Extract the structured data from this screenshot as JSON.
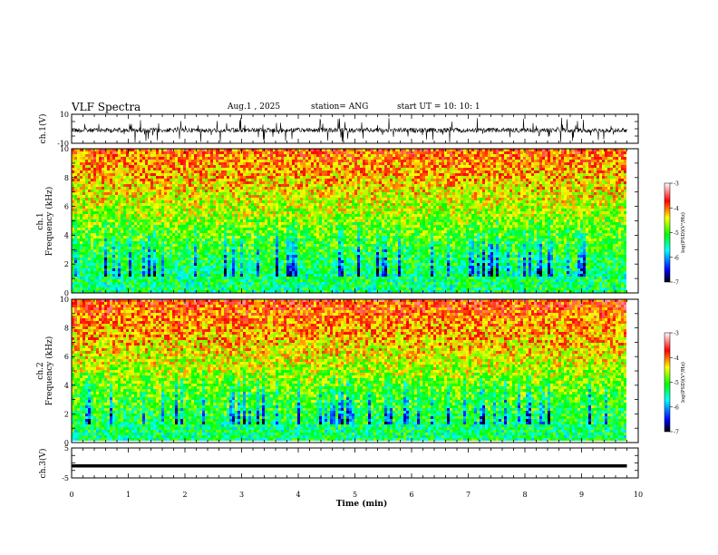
{
  "header": {
    "title": "VLF Spectra",
    "date": "Aug.1 , 2025",
    "station": "station= ANG",
    "start": "start UT = 10: 10: 1"
  },
  "chart_data": [
    {
      "type": "line",
      "panel": "ch1-waveform",
      "ylabel": "ch.1(V)",
      "ylim": [
        -10,
        10
      ],
      "yticks": [
        "10",
        "-10"
      ],
      "xlim": [
        0,
        10
      ],
      "color": "#000000"
    },
    {
      "type": "heatmap",
      "panel": "ch1-spectrogram",
      "ylabel": "ch.1\nFrequency (kHz)",
      "ylim": [
        0,
        10
      ],
      "yticks": [
        "0",
        "2",
        "4",
        "6",
        "8",
        "10"
      ],
      "xlim": [
        0,
        10
      ],
      "data_extent_min": 9.8,
      "colorbar": {
        "label": "log(PSD)(V²/Hz)",
        "range": [
          -7,
          -3
        ],
        "ticks": [
          "-3",
          "-4",
          "-5",
          "-6",
          "-7"
        ]
      }
    },
    {
      "type": "heatmap",
      "panel": "ch2-spectrogram",
      "ylabel": "ch.2\nFrequency (kHz)",
      "ylim": [
        0,
        10
      ],
      "yticks": [
        "0",
        "2",
        "4",
        "6",
        "8",
        "10"
      ],
      "xlim": [
        0,
        10
      ],
      "data_extent_min": 9.8,
      "colorbar": {
        "label": "log(PSD)(V²/Hz)",
        "range": [
          -7,
          -3
        ],
        "ticks": [
          "-3",
          "-4",
          "-5",
          "-6",
          "-7"
        ]
      }
    },
    {
      "type": "line",
      "panel": "ch3-waveform",
      "ylabel": "ch.3(V)",
      "ylim": [
        -5,
        5
      ],
      "yticks": [
        "5",
        "-5"
      ],
      "series": [
        {
          "x": [
            0,
            9.8
          ],
          "y": [
            -1,
            -1
          ]
        }
      ],
      "xlim": [
        0,
        10
      ],
      "xlabel": "Time (min)",
      "xticks": [
        "0",
        "1",
        "2",
        "3",
        "4",
        "5",
        "6",
        "7",
        "8",
        "9",
        "10"
      ]
    }
  ],
  "colormap": [
    "#000000",
    "#0000ff",
    "#00ffff",
    "#00ff00",
    "#ffff00",
    "#ff0000",
    "#ffffff"
  ]
}
